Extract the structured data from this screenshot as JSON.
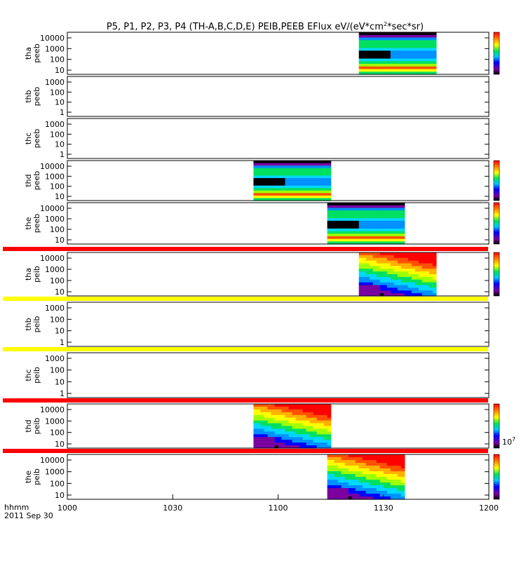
{
  "chart_data": {
    "type": "heatmap",
    "title": "P5, P1, P2, P3, P4 (TH-A,B,C,D,E) PEIB,PEEB EFlux eV/(eV*cm",
    "title_sup": "2",
    "title_end": "*sec*sr)",
    "x_time_label": "hhmm",
    "date_label": "2011 Sep 30",
    "x_ticks": [
      "1000",
      "1030",
      "1100",
      "1130",
      "1200"
    ],
    "x_range_minutes": [
      0,
      120
    ],
    "colorbar_label": "10",
    "colorbar_label_sup": "7",
    "panels": [
      {
        "probe": "tha",
        "product": "peeb",
        "yticks": [
          "10000",
          "1000",
          "100",
          "10"
        ],
        "data_start_min": 83,
        "data_end_min": 105,
        "has_data": true,
        "style": "electron",
        "colorbar": true
      },
      {
        "probe": "thb",
        "product": "peeb",
        "yticks": [
          "1000",
          "100",
          "10",
          "1"
        ],
        "has_data": false,
        "colorbar": false
      },
      {
        "probe": "thc",
        "product": "peeb",
        "yticks": [
          "1000",
          "100",
          "10",
          "1"
        ],
        "has_data": false,
        "colorbar": false
      },
      {
        "probe": "thd",
        "product": "peeb",
        "yticks": [
          "10000",
          "1000",
          "100",
          "10"
        ],
        "data_start_min": 53,
        "data_end_min": 75,
        "has_data": true,
        "style": "electron",
        "colorbar": true
      },
      {
        "probe": "the",
        "product": "peeb",
        "yticks": [
          "10000",
          "1000",
          "100",
          "10"
        ],
        "data_start_min": 74,
        "data_end_min": 96,
        "has_data": true,
        "style": "electron",
        "colorbar": true
      },
      {
        "probe": "tha",
        "product": "peib",
        "yticks": [
          "10000",
          "1000",
          "100",
          "10"
        ],
        "data_start_min": 83,
        "data_end_min": 105,
        "has_data": true,
        "style": "ion",
        "colorbar": true,
        "flag_color": "#ff0000"
      },
      {
        "probe": "thb",
        "product": "peib",
        "yticks": [
          "1000",
          "100",
          "10",
          "1"
        ],
        "has_data": false,
        "colorbar": false,
        "flag_color": "#ffff00"
      },
      {
        "probe": "thc",
        "product": "peib",
        "yticks": [
          "1000",
          "100",
          "10",
          "1"
        ],
        "has_data": false,
        "colorbar": false,
        "flag_color": "#ffff00"
      },
      {
        "probe": "thd",
        "product": "peib",
        "yticks": [
          "10000",
          "1000",
          "100",
          "10"
        ],
        "data_start_min": 53,
        "data_end_min": 75,
        "has_data": true,
        "style": "ion",
        "colorbar": true,
        "flag_color": "#ff0000"
      },
      {
        "probe": "the",
        "product": "peib",
        "yticks": [
          "10000",
          "1000",
          "100",
          "10"
        ],
        "data_start_min": 74,
        "data_end_min": 96,
        "has_data": true,
        "style": "ion",
        "colorbar": true,
        "flag_color": "#ff0000"
      }
    ],
    "grid": false
  }
}
